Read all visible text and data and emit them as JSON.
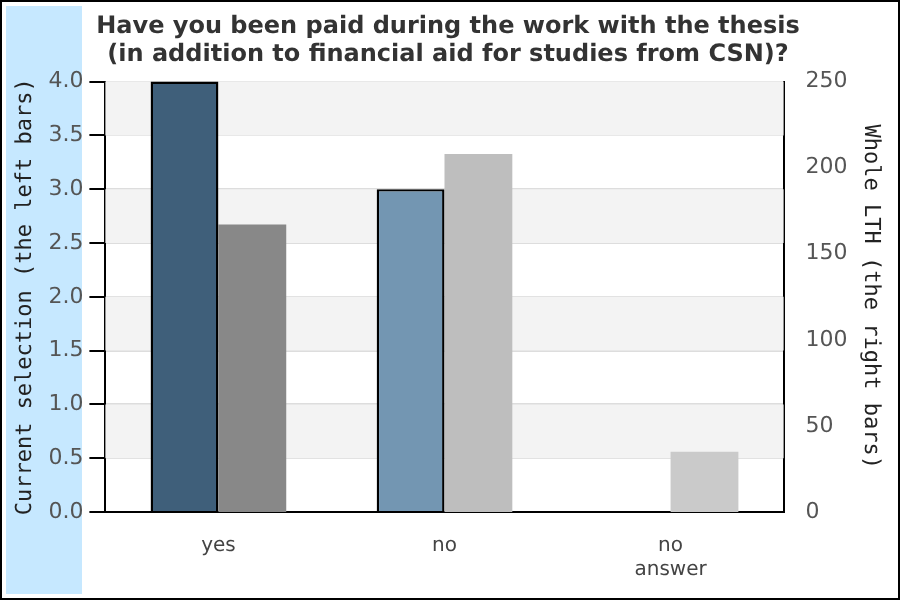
{
  "chart_data": {
    "type": "bar",
    "title": "Have you been paid during the work with the thesis\n(in addition to financial aid for studies from CSN)?",
    "ylabel": "Current selection (the left bars)",
    "y2label": "Whole LTH (the right bars)",
    "categories": [
      "yes",
      "no",
      "no answer"
    ],
    "series": [
      {
        "colors": [
          "#3f5f7a",
          "#7396b2",
          "#7396b2"
        ],
        "values": [
          4,
          3,
          0
        ]
      },
      {
        "axis": "y2",
        "colors": [
          "#888888",
          "#bebebe",
          "#cacaca"
        ],
        "values": [
          167,
          208,
          35
        ]
      }
    ],
    "ylim": [
      0,
      4
    ],
    "yticks": [
      {
        "value": 0,
        "label": "0.0"
      },
      {
        "value": 0.5,
        "label": "0.5"
      },
      {
        "value": 1,
        "label": "1.0"
      },
      {
        "value": 1.5,
        "label": "1.5"
      },
      {
        "value": 2,
        "label": "2.0"
      },
      {
        "value": 2.5,
        "label": "2.5"
      },
      {
        "value": 3,
        "label": "3.0"
      },
      {
        "value": 3.5,
        "label": "3.5"
      },
      {
        "value": 4,
        "label": "4.0"
      }
    ],
    "y2lim": [
      0,
      250
    ],
    "y2ticks": [
      0,
      50,
      100,
      150,
      200,
      250
    ],
    "grid": "y"
  }
}
